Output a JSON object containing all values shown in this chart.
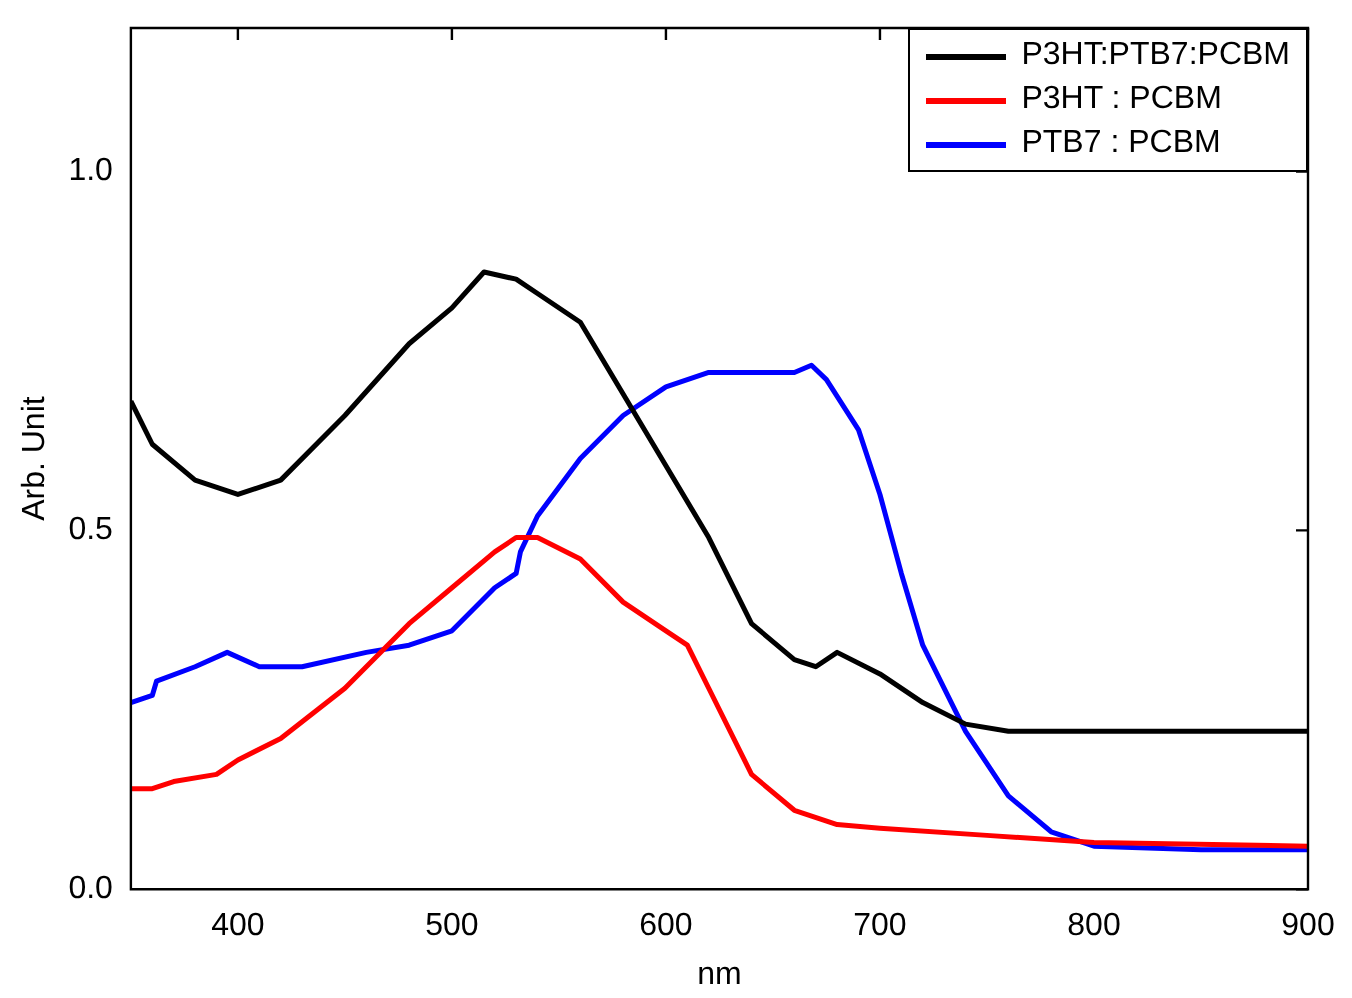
{
  "chart_data": {
    "type": "line",
    "xlabel": "nm",
    "ylabel": "Arb. Unit",
    "xlim": [
      350,
      900
    ],
    "ylim": [
      0,
      1.2
    ],
    "xticks": [
      400,
      500,
      600,
      700,
      800,
      900
    ],
    "yticks": [
      {
        "value": 0,
        "label": "0.0"
      },
      {
        "value": 0.5,
        "label": "0.5"
      },
      {
        "value": 1,
        "label": "1.0"
      }
    ],
    "grid": false,
    "legend": "top right",
    "marker": "none",
    "line_style": "solid",
    "series": [
      {
        "name": "P3HT:PTB7:PCBM",
        "color": "#000000",
        "x": [
          350,
          360,
          380,
          400,
          420,
          450,
          480,
          500,
          515,
          530,
          540,
          560,
          580,
          600,
          620,
          640,
          660,
          670,
          680,
          700,
          720,
          740,
          760,
          800,
          850,
          900
        ],
        "values": [
          0.68,
          0.62,
          0.57,
          0.55,
          0.57,
          0.66,
          0.76,
          0.81,
          0.86,
          0.85,
          0.83,
          0.79,
          0.69,
          0.59,
          0.49,
          0.37,
          0.32,
          0.31,
          0.33,
          0.3,
          0.26,
          0.23,
          0.22,
          0.22,
          0.22,
          0.22
        ]
      },
      {
        "name": "P3HT : PCBM",
        "color": "#ff0000",
        "x": [
          350,
          360,
          370,
          390,
          400,
          420,
          450,
          480,
          500,
          520,
          530,
          540,
          560,
          580,
          600,
          610,
          620,
          640,
          660,
          680,
          700,
          750,
          800,
          900
        ],
        "values": [
          0.14,
          0.14,
          0.15,
          0.16,
          0.18,
          0.21,
          0.28,
          0.37,
          0.42,
          0.47,
          0.49,
          0.49,
          0.46,
          0.4,
          0.36,
          0.34,
          0.28,
          0.16,
          0.11,
          0.09,
          0.085,
          0.075,
          0.065,
          0.06
        ]
      },
      {
        "name": "PTB7 : PCBM",
        "color": "#0000ff",
        "x": [
          350,
          360,
          362,
          380,
          395,
          410,
          430,
          460,
          480,
          500,
          520,
          530,
          532,
          540,
          560,
          580,
          600,
          620,
          640,
          660,
          668,
          675,
          690,
          700,
          710,
          720,
          740,
          760,
          780,
          800,
          850,
          900
        ],
        "values": [
          0.26,
          0.27,
          0.29,
          0.31,
          0.33,
          0.31,
          0.31,
          0.33,
          0.34,
          0.36,
          0.42,
          0.44,
          0.47,
          0.52,
          0.6,
          0.66,
          0.7,
          0.72,
          0.72,
          0.72,
          0.73,
          0.71,
          0.64,
          0.55,
          0.44,
          0.34,
          0.22,
          0.13,
          0.08,
          0.06,
          0.055,
          0.055
        ]
      }
    ]
  }
}
